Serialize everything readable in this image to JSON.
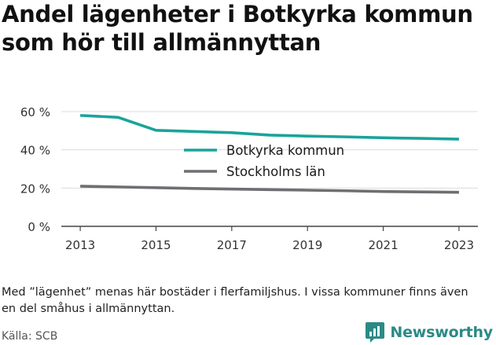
{
  "chart_data": {
    "type": "line",
    "title": "Andel lägenheter i Botkyrka kommun som hör till allmännyttan",
    "xlabel": "",
    "ylabel": "",
    "x": [
      2013,
      2014,
      2015,
      2016,
      2017,
      2018,
      2019,
      2020,
      2021,
      2022,
      2023
    ],
    "xticks": [
      "2013",
      "2015",
      "2017",
      "2019",
      "2021",
      "2023"
    ],
    "yticks": [
      "0 %",
      "20 %",
      "40 %",
      "60 %"
    ],
    "ylim": [
      0,
      60
    ],
    "grid": "horizontal",
    "legend": "center",
    "series": [
      {
        "name": "Botkyrka kommun",
        "color": "#1aa39a",
        "values": [
          58,
          57,
          50.2,
          49.6,
          49,
          47.7,
          47.2,
          46.8,
          46.3,
          46,
          45.6
        ]
      },
      {
        "name": "Stockholms län",
        "color": "#6e6e73",
        "values": [
          21,
          20.6,
          20.2,
          19.8,
          19.5,
          19.2,
          18.9,
          18.6,
          18.2,
          18,
          17.8
        ]
      }
    ]
  },
  "footnote": "Med ”lägenhet” menas här bostäder i flerfamiljshus. I vissa kommuner finns även en del småhus i allmännyttan.",
  "source": "Källa: SCB",
  "brand": {
    "name": "Newsworthy",
    "icon": "newsworthy-logo-icon",
    "color": "#2b8a86"
  }
}
